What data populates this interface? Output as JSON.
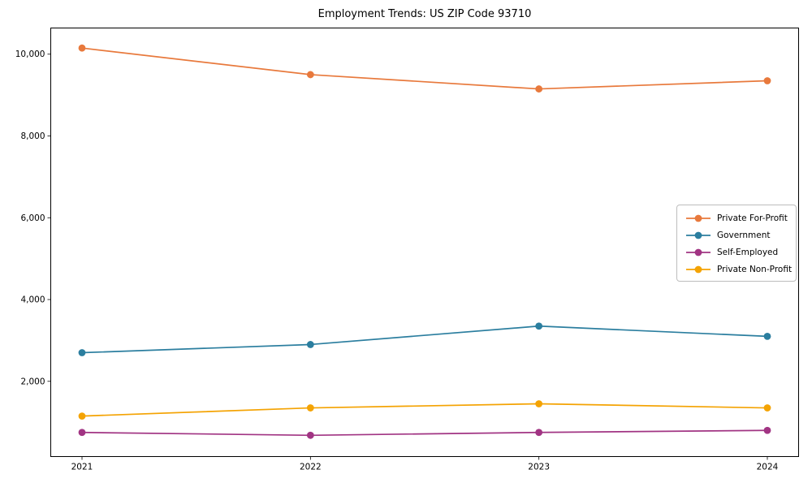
{
  "figure": {
    "background_color": "#ffffff",
    "spine_color": "#000000",
    "text_color": "#000000"
  },
  "chart_data": {
    "type": "line",
    "title": "Employment Trends: US ZIP Code 93710",
    "xlabel": "",
    "ylabel": "",
    "categories": [
      "2021",
      "2022",
      "2023",
      "2024"
    ],
    "series": [
      {
        "name": "Private For-Profit",
        "color": "#e8793c",
        "values": [
          10150,
          9500,
          9150,
          9350
        ]
      },
      {
        "name": "Government",
        "color": "#2b7e9f",
        "values": [
          2700,
          2900,
          3350,
          3100
        ]
      },
      {
        "name": "Self-Employed",
        "color": "#a13483",
        "values": [
          750,
          680,
          750,
          800
        ]
      },
      {
        "name": "Private Non-Profit",
        "color": "#f4a303",
        "values": [
          1150,
          1350,
          1450,
          1350
        ]
      }
    ],
    "yticks": [
      {
        "value": 2000,
        "label": "2,000"
      },
      {
        "value": 4000,
        "label": "4,000"
      },
      {
        "value": 6000,
        "label": "6,000"
      },
      {
        "value": 8000,
        "label": "8,000"
      },
      {
        "value": 10000,
        "label": "10,000"
      }
    ],
    "ylim": [
      150,
      10650
    ],
    "grid": false,
    "marker": "circle",
    "legend_position": "center right"
  }
}
